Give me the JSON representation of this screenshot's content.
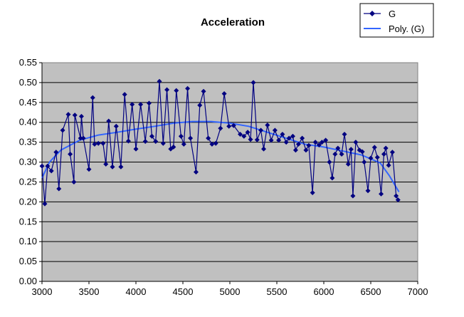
{
  "chart_data": {
    "type": "scatter",
    "title": "Acceleration",
    "xlabel": "",
    "ylabel": "",
    "xlim": [
      3000,
      7000
    ],
    "ylim": [
      0,
      0.55
    ],
    "xticks": [
      "3000",
      "3500",
      "4000",
      "4500",
      "5000",
      "5500",
      "6000",
      "6500",
      "7000"
    ],
    "yticks": [
      "0.00",
      "0.05",
      "0.10",
      "0.15",
      "0.20",
      "0.25",
      "0.30",
      "0.35",
      "0.40",
      "0.45",
      "0.50",
      "0.55"
    ],
    "grid": "horizontal",
    "legend_position": "top-right",
    "plot_background": "#c0c0c0",
    "series": [
      {
        "name": "G",
        "color": "#000080",
        "marker": "diamond",
        "points": [
          [
            3000,
            0.29
          ],
          [
            3030,
            0.195
          ],
          [
            3060,
            0.29
          ],
          [
            3100,
            0.278
          ],
          [
            3150,
            0.325
          ],
          [
            3180,
            0.233
          ],
          [
            3220,
            0.38
          ],
          [
            3280,
            0.42
          ],
          [
            3300,
            0.32
          ],
          [
            3340,
            0.25
          ],
          [
            3350,
            0.418
          ],
          [
            3410,
            0.36
          ],
          [
            3420,
            0.415
          ],
          [
            3440,
            0.36
          ],
          [
            3500,
            0.282
          ],
          [
            3540,
            0.462
          ],
          [
            3560,
            0.345
          ],
          [
            3600,
            0.347
          ],
          [
            3650,
            0.347
          ],
          [
            3680,
            0.295
          ],
          [
            3710,
            0.403
          ],
          [
            3750,
            0.288
          ],
          [
            3790,
            0.39
          ],
          [
            3840,
            0.288
          ],
          [
            3880,
            0.47
          ],
          [
            3920,
            0.353
          ],
          [
            3960,
            0.445
          ],
          [
            4000,
            0.333
          ],
          [
            4050,
            0.445
          ],
          [
            4100,
            0.352
          ],
          [
            4140,
            0.448
          ],
          [
            4170,
            0.365
          ],
          [
            4210,
            0.352
          ],
          [
            4250,
            0.503
          ],
          [
            4290,
            0.347
          ],
          [
            4330,
            0.482
          ],
          [
            4370,
            0.333
          ],
          [
            4400,
            0.338
          ],
          [
            4430,
            0.48
          ],
          [
            4480,
            0.365
          ],
          [
            4510,
            0.345
          ],
          [
            4550,
            0.485
          ],
          [
            4580,
            0.36
          ],
          [
            4640,
            0.275
          ],
          [
            4680,
            0.443
          ],
          [
            4720,
            0.478
          ],
          [
            4770,
            0.36
          ],
          [
            4810,
            0.345
          ],
          [
            4850,
            0.347
          ],
          [
            4900,
            0.385
          ],
          [
            4940,
            0.472
          ],
          [
            4990,
            0.39
          ],
          [
            5040,
            0.392
          ],
          [
            5110,
            0.37
          ],
          [
            5150,
            0.365
          ],
          [
            5190,
            0.375
          ],
          [
            5220,
            0.357
          ],
          [
            5250,
            0.5
          ],
          [
            5290,
            0.356
          ],
          [
            5330,
            0.38
          ],
          [
            5360,
            0.333
          ],
          [
            5400,
            0.393
          ],
          [
            5440,
            0.355
          ],
          [
            5480,
            0.38
          ],
          [
            5520,
            0.355
          ],
          [
            5560,
            0.37
          ],
          [
            5600,
            0.35
          ],
          [
            5630,
            0.36
          ],
          [
            5670,
            0.365
          ],
          [
            5700,
            0.33
          ],
          [
            5730,
            0.345
          ],
          [
            5770,
            0.36
          ],
          [
            5810,
            0.33
          ],
          [
            5840,
            0.342
          ],
          [
            5880,
            0.223
          ],
          [
            5910,
            0.35
          ],
          [
            5950,
            0.343
          ],
          [
            5980,
            0.35
          ],
          [
            6020,
            0.355
          ],
          [
            6060,
            0.3
          ],
          [
            6090,
            0.26
          ],
          [
            6120,
            0.32
          ],
          [
            6150,
            0.335
          ],
          [
            6190,
            0.32
          ],
          [
            6220,
            0.37
          ],
          [
            6260,
            0.295
          ],
          [
            6290,
            0.332
          ],
          [
            6310,
            0.215
          ],
          [
            6340,
            0.35
          ],
          [
            6380,
            0.33
          ],
          [
            6410,
            0.326
          ],
          [
            6430,
            0.3
          ],
          [
            6470,
            0.228
          ],
          [
            6500,
            0.31
          ],
          [
            6540,
            0.337
          ],
          [
            6570,
            0.312
          ],
          [
            6610,
            0.22
          ],
          [
            6640,
            0.32
          ],
          [
            6660,
            0.335
          ],
          [
            6690,
            0.292
          ],
          [
            6730,
            0.325
          ],
          [
            6770,
            0.215
          ],
          [
            6790,
            0.205
          ]
        ]
      },
      {
        "name": "Poly. (G)",
        "color": "#3366ff",
        "style": "trendline",
        "points": [
          [
            3000,
            0.26
          ],
          [
            3080,
            0.3
          ],
          [
            3200,
            0.33
          ],
          [
            3400,
            0.355
          ],
          [
            3600,
            0.368
          ],
          [
            3800,
            0.375
          ],
          [
            4000,
            0.383
          ],
          [
            4200,
            0.39
          ],
          [
            4400,
            0.398
          ],
          [
            4600,
            0.402
          ],
          [
            4800,
            0.402
          ],
          [
            5000,
            0.398
          ],
          [
            5200,
            0.39
          ],
          [
            5400,
            0.375
          ],
          [
            5600,
            0.36
          ],
          [
            5800,
            0.345
          ],
          [
            6000,
            0.338
          ],
          [
            6200,
            0.328
          ],
          [
            6400,
            0.318
          ],
          [
            6600,
            0.298
          ],
          [
            6700,
            0.265
          ],
          [
            6800,
            0.225
          ]
        ]
      }
    ]
  }
}
